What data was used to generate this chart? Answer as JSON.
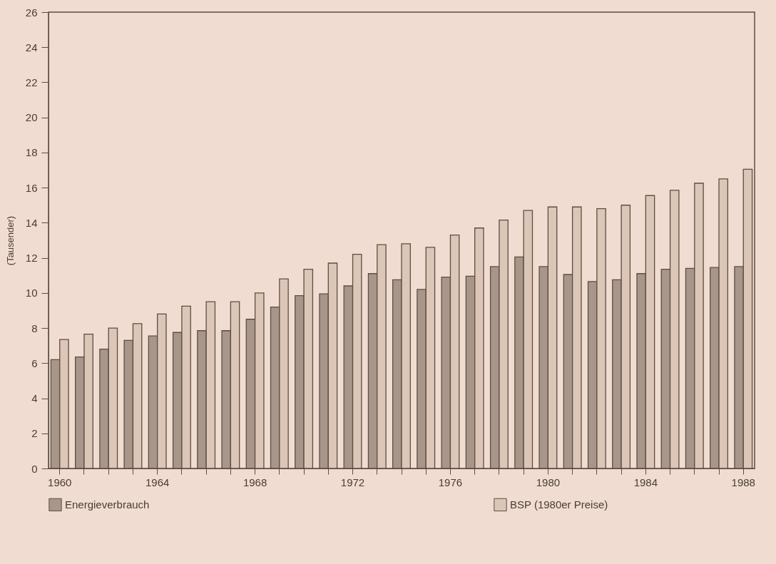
{
  "chart_data": {
    "type": "bar",
    "ylabel": "(Tausender)",
    "categories": [
      "1960",
      null,
      null,
      null,
      "1964",
      null,
      null,
      null,
      "1968",
      null,
      null,
      null,
      "1972",
      null,
      null,
      null,
      "1976",
      null,
      null,
      null,
      "1980",
      null,
      null,
      null,
      "1984",
      null,
      null,
      null,
      "1988"
    ],
    "series": [
      {
        "name": "Energieverbrauch",
        "color": "#a8968a",
        "values": [
          6.2,
          6.35,
          6.8,
          7.3,
          7.55,
          7.75,
          7.85,
          7.85,
          8.5,
          9.2,
          9.85,
          9.95,
          10.4,
          11.1,
          10.75,
          10.2,
          10.9,
          10.95,
          11.5,
          12.05,
          11.5,
          11.05,
          10.65,
          10.75,
          11.1,
          11.35,
          11.4,
          11.45,
          11.5
        ]
      },
      {
        "name": "BSP (1980er Preise)",
        "color": "#dcc6b8",
        "values": [
          7.35,
          7.65,
          8.0,
          8.25,
          8.8,
          9.25,
          9.5,
          9.5,
          10.0,
          10.8,
          11.35,
          11.7,
          12.2,
          12.75,
          12.8,
          12.6,
          13.3,
          13.7,
          14.15,
          14.7,
          14.9,
          14.9,
          14.8,
          15.0,
          15.55,
          15.85,
          16.25,
          16.5,
          17.05
        ]
      }
    ],
    "ylim": [
      0,
      26
    ],
    "yticks": [
      0,
      2,
      4,
      6,
      8,
      10,
      12,
      14,
      16,
      18,
      20,
      22,
      24,
      26
    ],
    "grid": false,
    "legend": "bottom"
  }
}
